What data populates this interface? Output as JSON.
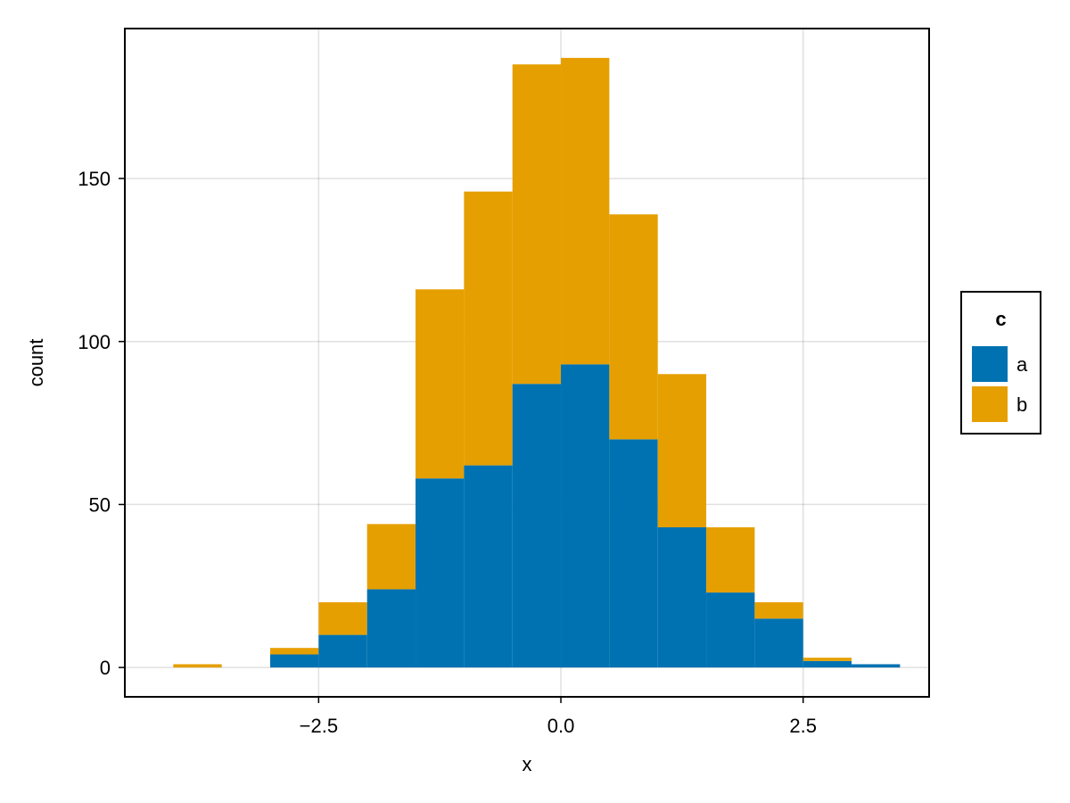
{
  "chart_data": {
    "type": "bar",
    "stacked": true,
    "xlabel": "x",
    "ylabel": "count",
    "xlim": [
      -4.5,
      3.8
    ],
    "ylim": [
      -9,
      196
    ],
    "x_ticks": [
      -2.5,
      0.0,
      2.5
    ],
    "x_tick_labels": [
      "−2.5",
      "0.0",
      "2.5"
    ],
    "y_ticks": [
      0,
      50,
      100,
      150
    ],
    "y_tick_labels": [
      "0",
      "50",
      "100",
      "150"
    ],
    "grid": true,
    "bin_width": 0.5,
    "bin_starts": [
      -4.0,
      -3.5,
      -3.0,
      -2.5,
      -2.0,
      -1.5,
      -1.0,
      -0.5,
      0.0,
      0.5,
      1.0,
      1.5,
      2.0,
      2.5,
      3.0
    ],
    "series": [
      {
        "name": "a",
        "color": "#0072b2",
        "values": [
          0,
          0,
          4,
          10,
          24,
          58,
          62,
          87,
          93,
          70,
          43,
          23,
          15,
          2,
          1
        ]
      },
      {
        "name": "b",
        "color": "#e69f00",
        "values": [
          1,
          0,
          2,
          10,
          20,
          58,
          84,
          98,
          94,
          69,
          47,
          20,
          5,
          1,
          0
        ]
      }
    ],
    "legend": {
      "title": "c",
      "placement": "right"
    }
  }
}
